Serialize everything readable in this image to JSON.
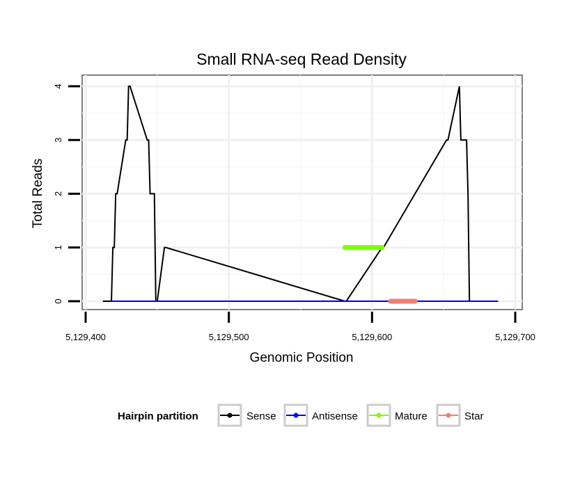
{
  "chart_data": {
    "type": "line",
    "title": "Small RNA-seq Read Density",
    "xlabel": "Genomic Position",
    "ylabel": "Total Reads",
    "xlim": [
      5129400,
      5129700
    ],
    "ylim": [
      0,
      4
    ],
    "x_ticks": [
      5129400,
      5129500,
      5129600,
      5129700
    ],
    "x_tick_labels": [
      "5,129,400",
      "5,129,500",
      "5,129,600",
      "5,129,700"
    ],
    "y_ticks": [
      0,
      1,
      2,
      3,
      4
    ],
    "y_tick_labels": [
      "0",
      "1",
      "2",
      "3",
      "4"
    ],
    "grid": true,
    "legend": {
      "title": "Hairpin partition",
      "position": "bottom",
      "entries": [
        {
          "label": "Sense",
          "color": "#000000"
        },
        {
          "label": "Antisense",
          "color": "#0000ff"
        },
        {
          "label": "Mature",
          "color": "#7fff00"
        },
        {
          "label": "Star",
          "color": "#f08070"
        }
      ]
    },
    "series": [
      {
        "name": "Sense",
        "color": "#000000",
        "x": [
          5129412,
          5129418,
          5129419,
          5129420,
          5129421,
          5129422,
          5129428,
          5129429,
          5129430,
          5129431,
          5129443,
          5129444,
          5129445,
          5129448,
          5129449,
          5129450,
          5129455,
          5129456,
          5129581,
          5129582,
          5129607,
          5129608,
          5129652,
          5129653,
          5129661,
          5129662,
          5129666,
          5129667,
          5129668,
          5129669,
          5129683,
          5129684,
          5129685,
          5129686,
          5129688
        ],
        "y": [
          0,
          0,
          1,
          1,
          2,
          2,
          3,
          3,
          4,
          4,
          3,
          3,
          2,
          2,
          0,
          0,
          1,
          1,
          0,
          0,
          1,
          1,
          3,
          3,
          4,
          3,
          3,
          2,
          0,
          0,
          0,
          0,
          0,
          0,
          0
        ]
      },
      {
        "name": "Antisense",
        "color": "#0000ff",
        "x": [
          5129418,
          5129456,
          5129581,
          5129608,
          5129652,
          5129688
        ],
        "y": [
          0,
          0,
          0,
          0,
          0,
          0
        ]
      },
      {
        "name": "Mature",
        "color": "#7fff00",
        "x": [
          5129581,
          5129607
        ],
        "y": [
          1,
          1
        ]
      },
      {
        "name": "Star",
        "color": "#f08070",
        "x": [
          5129613,
          5129630
        ],
        "y": [
          0,
          0
        ]
      }
    ]
  }
}
